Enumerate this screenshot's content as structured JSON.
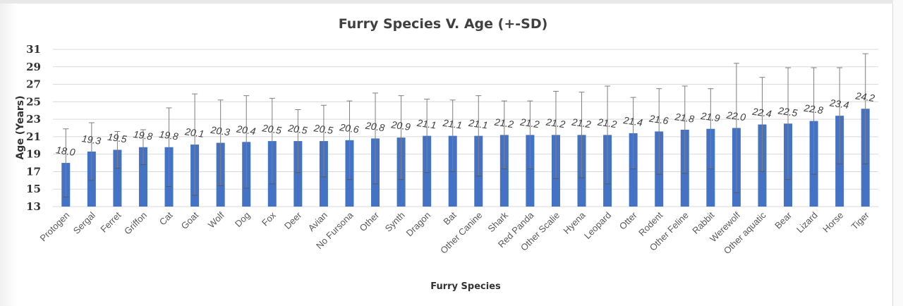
{
  "chart_data": {
    "type": "bar",
    "title": "Furry Species V. Age (+-SD)",
    "xlabel": "Furry Species",
    "ylabel": "Age (Years)",
    "ylim": [
      13,
      31
    ],
    "yticks": [
      13,
      15,
      17,
      19,
      21,
      23,
      25,
      27,
      29,
      31
    ],
    "grid": true,
    "legend": "none",
    "bar_color": "#4472c4",
    "categories": [
      "Protogen",
      "Sergal",
      "Ferret",
      "Griffon",
      "Cat",
      "Goat",
      "Wolf",
      "Dog",
      "Fox",
      "Deer",
      "Avian",
      "No Fursona",
      "Other",
      "Synth",
      "Dragon",
      "Bat",
      "Other Canine",
      "Shark",
      "Red Panda",
      "Other Scalie",
      "Hyena",
      "Leopard",
      "Otter",
      "Rodent",
      "Other Feline",
      "Rabbit",
      "Werewolf",
      "Other aquatic",
      "Bear",
      "Lizard",
      "Horse",
      "Tiger"
    ],
    "values": [
      18.0,
      19.3,
      19.5,
      19.8,
      19.8,
      20.1,
      20.3,
      20.4,
      20.5,
      20.5,
      20.5,
      20.6,
      20.8,
      20.9,
      21.1,
      21.1,
      21.1,
      21.2,
      21.2,
      21.2,
      21.2,
      21.2,
      21.4,
      21.6,
      21.8,
      21.9,
      22.0,
      22.4,
      22.5,
      22.8,
      23.4,
      24.2
    ],
    "data_labels": [
      "18.0",
      "19.3",
      "19.5",
      "19.8",
      "19.8",
      "20.1",
      "20.3",
      "20.4",
      "20.5",
      "20.5",
      "20.5",
      "20.6",
      "20.8",
      "20.9",
      "21.1",
      "21.1",
      "21.1",
      "21.2",
      "21.2",
      "21.2",
      "21.2",
      "21.2",
      "21.4",
      "21.6",
      "21.8",
      "21.9",
      "22.0",
      "22.4",
      "22.5",
      "22.8",
      "23.4",
      "24.2"
    ],
    "error_sd": [
      3.9,
      3.3,
      2.1,
      2.0,
      4.5,
      5.8,
      4.9,
      5.3,
      4.9,
      3.6,
      4.1,
      4.5,
      5.2,
      4.8,
      4.2,
      4.1,
      4.6,
      3.9,
      3.9,
      5.0,
      4.9,
      5.6,
      4.1,
      4.9,
      5.0,
      4.6,
      7.4,
      5.4,
      6.4,
      6.1,
      5.5,
      6.3
    ]
  }
}
